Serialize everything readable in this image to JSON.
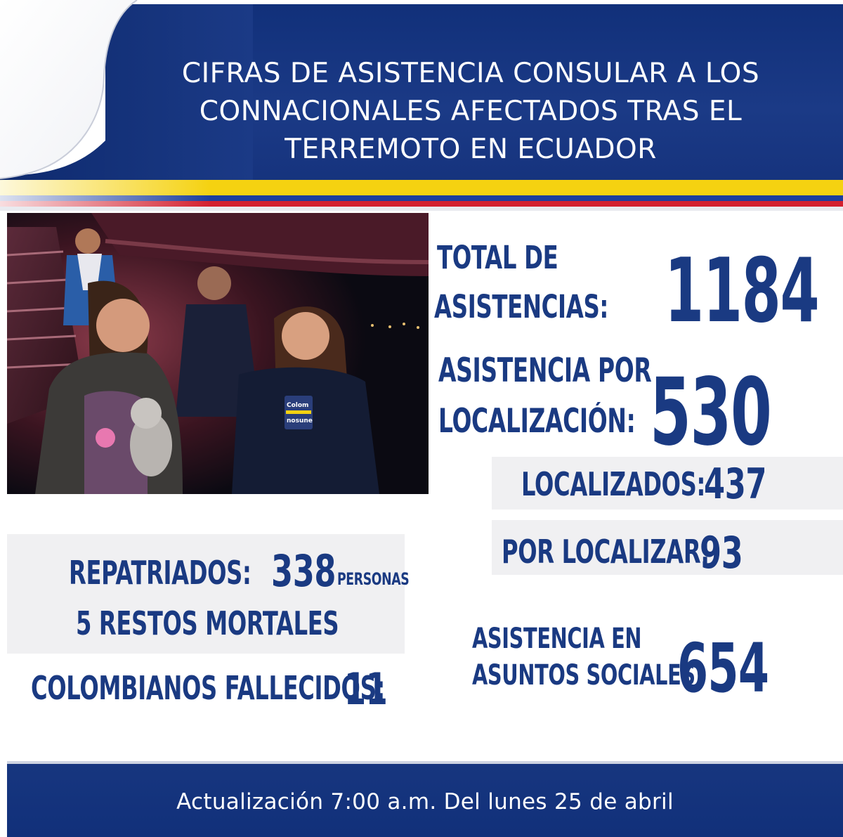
{
  "header": {
    "title_line1": "CIFRAS DE ASISTENCIA CONSULAR A LOS",
    "title_line2": "CONNACIONALES AFECTADOS TRAS EL",
    "title_line3": "TERREMOTO EN ECUADOR"
  },
  "colors": {
    "navy": "#1a3a82",
    "flag_yellow": "#f5d211",
    "flag_blue": "#1c3e9e",
    "flag_red": "#d3202f",
    "panel_grey": "#f0f0f2"
  },
  "photo": {
    "icon": "photo-people-airport-arrival"
  },
  "stats": {
    "total_label_1": "TOTAL DE",
    "total_label_2": "ASISTENCIAS:",
    "total_value": "1184",
    "localizacion_label_1": "ASISTENCIA POR",
    "localizacion_label_2": "LOCALIZACIÓN:",
    "localizacion_value": "530",
    "localizados_label": "LOCALIZADOS:",
    "localizados_value": "437",
    "por_localizar_label": "POR LOCALIZAR:",
    "por_localizar_value": "93",
    "repatriados_label": "REPATRIADOS:",
    "repatriados_value": "338",
    "repatriados_unit": "PERSONAS",
    "restos_mortales": "5 RESTOS MORTALES",
    "fallecidos_label": "COLOMBIANOS FALLECIDOS:",
    "fallecidos_value": "11",
    "sociales_label_1": "ASISTENCIA EN",
    "sociales_label_2": "ASUNTOS SOCIALES:",
    "sociales_value": "654"
  },
  "footer": {
    "text": "Actualización 7:00 a.m. Del lunes 25 de abril"
  }
}
